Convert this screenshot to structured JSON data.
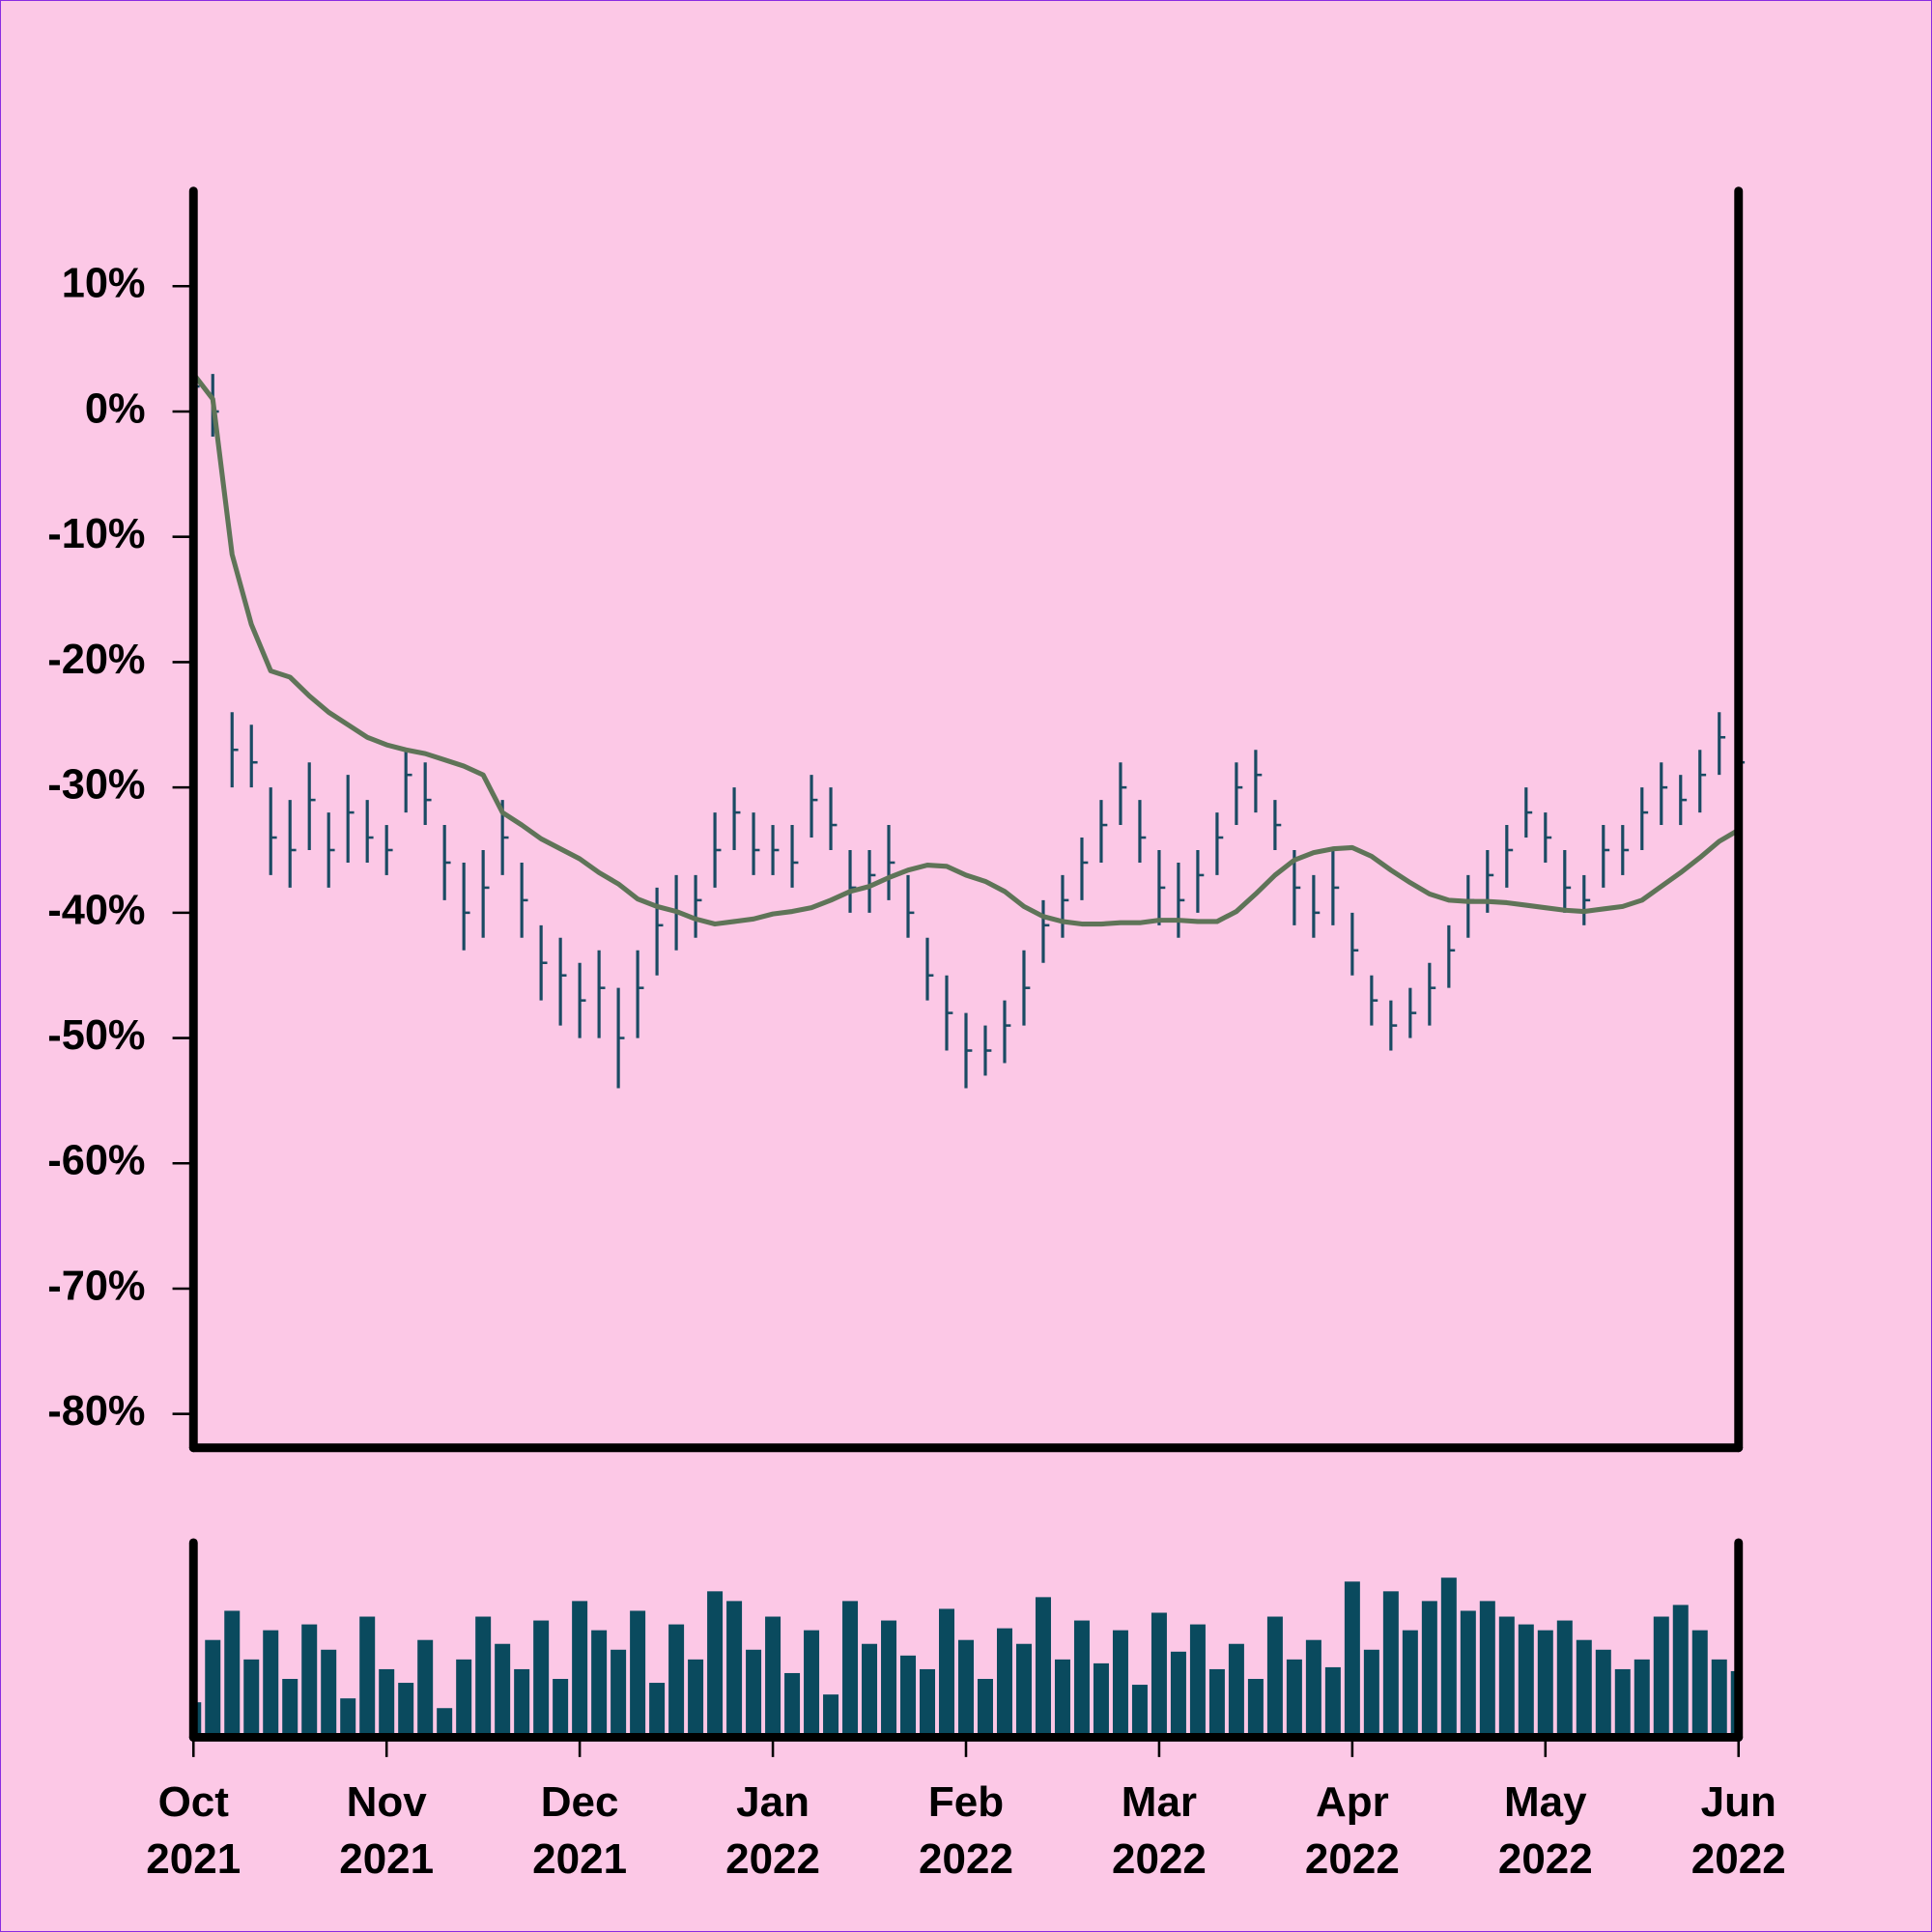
{
  "chart_data": {
    "type": "ohlc",
    "ylim": [
      -82.7,
      17.6
    ],
    "yticks": [
      {
        "value": 10,
        "label": "10%"
      },
      {
        "value": 0,
        "label": "0%"
      },
      {
        "value": -10,
        "label": "-10%"
      },
      {
        "value": -20,
        "label": "-20%"
      },
      {
        "value": -30,
        "label": "-30%"
      },
      {
        "value": -40,
        "label": "-40%"
      },
      {
        "value": -50,
        "label": "-50%"
      },
      {
        "value": -60,
        "label": "-60%"
      },
      {
        "value": -70,
        "label": "-70%"
      },
      {
        "value": -80,
        "label": "-80%"
      }
    ],
    "xlim": [
      0,
      8
    ],
    "xticks": [
      {
        "value": 0,
        "label": "Oct\n2021"
      },
      {
        "value": 1,
        "label": "Nov\n2021"
      },
      {
        "value": 2,
        "label": "Dec\n2021"
      },
      {
        "value": 3,
        "label": "Jan\n2022"
      },
      {
        "value": 4,
        "label": "Feb\n2022"
      },
      {
        "value": 5,
        "label": "Mar\n2022"
      },
      {
        "value": 6,
        "label": "Apr\n2022"
      },
      {
        "value": 7,
        "label": "May\n2022"
      },
      {
        "value": 8,
        "label": "Jun\n2022"
      }
    ],
    "bar_color": "#1a4a63",
    "high": [
      4,
      3,
      -24,
      -25,
      -30,
      -31,
      -28,
      -32,
      -29,
      -31,
      -33,
      -27,
      -28,
      -33,
      -36,
      -35,
      -31,
      -36,
      -41,
      -42,
      -44,
      -43,
      -46,
      -43,
      -38,
      -37,
      -37,
      -32,
      -30,
      -32,
      -33,
      -33,
      -29,
      -30,
      -35,
      -35,
      -33,
      -37,
      -42,
      -45,
      -48,
      -49,
      -47,
      -43,
      -39,
      -37,
      -34,
      -31,
      -28,
      -31,
      -35,
      -36,
      -35,
      -32,
      -28,
      -27,
      -31,
      -35,
      -37,
      -35,
      -40,
      -45,
      -47,
      -46,
      -44,
      -41,
      -37,
      -35,
      -33,
      -30,
      -32,
      -35,
      -37,
      -33,
      -33,
      -30,
      -28,
      -29,
      -27,
      -24,
      -25
    ],
    "low": [
      1,
      -2,
      -30,
      -30,
      -37,
      -38,
      -35,
      -38,
      -36,
      -36,
      -37,
      -32,
      -33,
      -39,
      -43,
      -42,
      -37,
      -42,
      -47,
      -49,
      -50,
      -50,
      -54,
      -50,
      -45,
      -43,
      -42,
      -38,
      -35,
      -37,
      -37,
      -38,
      -34,
      -35,
      -40,
      -40,
      -39,
      -42,
      -47,
      -51,
      -54,
      -53,
      -52,
      -49,
      -44,
      -42,
      -39,
      -36,
      -33,
      -36,
      -41,
      -42,
      -40,
      -37,
      -33,
      -32,
      -35,
      -41,
      -42,
      -41,
      -45,
      -49,
      -51,
      -50,
      -49,
      -46,
      -42,
      -40,
      -38,
      -34,
      -36,
      -40,
      -41,
      -38,
      -37,
      -35,
      -33,
      -33,
      -32,
      -29,
      -30
    ],
    "close": [
      2,
      0,
      -27,
      -28,
      -34,
      -35,
      -31,
      -35,
      -32,
      -34,
      -35,
      -29,
      -31,
      -36,
      -40,
      -38,
      -34,
      -39,
      -44,
      -45,
      -47,
      -46,
      -50,
      -46,
      -41,
      -40,
      -39,
      -35,
      -32,
      -35,
      -35,
      -36,
      -31,
      -33,
      -38,
      -37,
      -36,
      -40,
      -45,
      -48,
      -51,
      -51,
      -49,
      -46,
      -41,
      -39,
      -36,
      -33,
      -30,
      -34,
      -38,
      -39,
      -37,
      -34,
      -30,
      -29,
      -33,
      -38,
      -40,
      -38,
      -43,
      -47,
      -49,
      -48,
      -46,
      -43,
      -39,
      -37,
      -35,
      -32,
      -34,
      -38,
      -39,
      -35,
      -35,
      -32,
      -30,
      -31,
      -29,
      -26,
      -28
    ],
    "ma_color": "#5f7458",
    "moving_average": [
      3,
      1,
      -11.4,
      -17,
      -20.7,
      -21.2,
      -22.7,
      -24,
      -25,
      -26,
      -26.6,
      -27,
      -27.3,
      -27.8,
      -28.3,
      -29,
      -32,
      -33,
      -34.1,
      -34.9,
      -35.7,
      -36.8,
      -37.7,
      -38.9,
      -39.5,
      -39.9,
      -40.5,
      -40.9,
      -40.7,
      -40.5,
      -40.1,
      -39.9,
      -39.6,
      -39,
      -38.3,
      -37.9,
      -37.2,
      -36.6,
      -36.2,
      -36.3,
      -37,
      -37.5,
      -38.3,
      -39.5,
      -40.3,
      -40.7,
      -40.9,
      -40.9,
      -40.8,
      -40.8,
      -40.6,
      -40.6,
      -40.7,
      -40.7,
      -39.9,
      -38.5,
      -37,
      -35.8,
      -35.2,
      -34.9,
      -34.8,
      -35.5,
      -36.6,
      -37.6,
      -38.5,
      -39,
      -39.1,
      -39.1,
      -39.2,
      -39.4,
      -39.6,
      -39.8,
      -39.9,
      -39.7,
      -39.5,
      -39,
      -37.9,
      -36.8,
      -35.6,
      -34.3,
      -33.4
    ],
    "volume_color": "#0a4a5e",
    "volume_ylim": [
      0,
      100
    ],
    "volume": [
      18,
      50,
      65,
      40,
      55,
      30,
      58,
      45,
      20,
      62,
      35,
      28,
      50,
      15,
      40,
      62,
      48,
      35,
      60,
      30,
      70,
      55,
      45,
      65,
      28,
      58,
      40,
      75,
      70,
      45,
      62,
      33,
      55,
      22,
      70,
      48,
      60,
      42,
      35,
      66,
      50,
      30,
      56,
      48,
      72,
      40,
      60,
      38,
      55,
      27,
      64,
      44,
      58,
      35,
      48,
      30,
      62,
      40,
      50,
      36,
      80,
      45,
      75,
      55,
      70,
      82,
      65,
      70,
      62,
      58,
      55,
      60,
      50,
      45,
      35,
      40,
      62,
      68,
      55,
      40,
      34
    ]
  }
}
